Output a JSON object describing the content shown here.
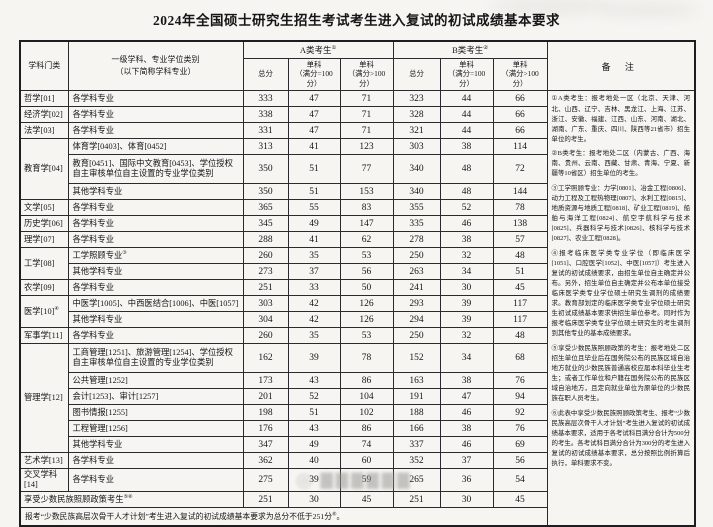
{
  "title": "2024年全国硕士研究生招生考试考生进入复试的初试成绩基本要求",
  "table": {
    "header": {
      "category": "学科门类",
      "subject": "一级学科、专业学位类别\n（以下简称学科专业）",
      "group_a": "A类考生",
      "group_a_sup": "①",
      "group_b": "B类考生",
      "group_b_sup": "②",
      "sub_total": "总分",
      "sub_single_100": "单科\n（满分=100分）",
      "sub_single_gt100": "单科\n（满分>100分）",
      "remarks": "备 注"
    },
    "rows": [
      {
        "cat": "哲学[01]",
        "sub": "各学科专业",
        "vals": [
          333,
          47,
          71,
          323,
          44,
          66
        ]
      },
      {
        "cat": "经济学[02]",
        "sub": "各学科专业",
        "vals": [
          338,
          47,
          71,
          328,
          44,
          66
        ]
      },
      {
        "cat": "法学[03]",
        "sub": "各学科专业",
        "vals": [
          331,
          47,
          71,
          321,
          44,
          66
        ]
      },
      {
        "cat": "教育学[04]",
        "rs": 3,
        "sub": "体育学[0403]、体育[0452]",
        "vals": [
          313,
          41,
          123,
          303,
          38,
          114
        ]
      },
      {
        "sub": "教育[0451]、国际中文教育[0453]、学位授权自主审核单位自主设置的专业学位类别",
        "tall": true,
        "vals": [
          350,
          51,
          77,
          340,
          48,
          72
        ]
      },
      {
        "sub": "其他学科专业",
        "vals": [
          350,
          51,
          153,
          340,
          48,
          144
        ]
      },
      {
        "cat": "文学[05]",
        "sub": "各学科专业",
        "vals": [
          365,
          55,
          83,
          355,
          52,
          78
        ]
      },
      {
        "cat": "历史学[06]",
        "sub": "各学科专业",
        "vals": [
          345,
          49,
          147,
          335,
          46,
          138
        ]
      },
      {
        "cat": "理学[07]",
        "sub": "各学科专业",
        "vals": [
          288,
          41,
          62,
          278,
          38,
          57
        ]
      },
      {
        "cat": "工学[08]",
        "rs": 2,
        "sub": "工学照顾专业",
        "subSup": "③",
        "vals": [
          260,
          35,
          53,
          250,
          32,
          48
        ]
      },
      {
        "sub": "其他学科专业",
        "vals": [
          273,
          37,
          56,
          263,
          34,
          51
        ]
      },
      {
        "cat": "农学[09]",
        "sub": "各学科专业",
        "vals": [
          251,
          33,
          50,
          241,
          30,
          45
        ]
      },
      {
        "cat": "医学[10]",
        "catSup": "④",
        "rs": 2,
        "sub": "中医学[1005]、中西医结合[1006]、中医[1057]",
        "vals": [
          303,
          42,
          126,
          293,
          39,
          117
        ]
      },
      {
        "sub": "其他学科专业",
        "vals": [
          304,
          42,
          126,
          294,
          39,
          117
        ]
      },
      {
        "cat": "军事学[11]",
        "sub": "各学科专业",
        "vals": [
          260,
          35,
          53,
          250,
          32,
          48
        ]
      },
      {
        "cat": "管理学[12]",
        "rs": 6,
        "sub": "工商管理[1251]、旅游管理[1254]、学位授权自主审核单位自主设置的专业学位类别",
        "tall": true,
        "vals": [
          162,
          39,
          78,
          152,
          34,
          68
        ]
      },
      {
        "sub": "公共管理[1252]",
        "vals": [
          173,
          43,
          86,
          163,
          38,
          76
        ]
      },
      {
        "sub": "会计[1253]、审计[1257]",
        "vals": [
          201,
          52,
          104,
          191,
          47,
          94
        ]
      },
      {
        "sub": "图书情报[1255]",
        "vals": [
          198,
          51,
          102,
          188,
          46,
          92
        ]
      },
      {
        "sub": "工程管理[1256]",
        "vals": [
          176,
          43,
          86,
          166,
          38,
          76
        ]
      },
      {
        "sub": "其他学科专业",
        "vals": [
          347,
          49,
          74,
          337,
          46,
          69
        ]
      },
      {
        "cat": "艺术学[13]",
        "sub": "各学科专业",
        "vals": [
          362,
          40,
          60,
          352,
          37,
          56
        ]
      },
      {
        "cat": "交叉学科[14]",
        "sub": "各学科专业",
        "vals": [
          275,
          39,
          59,
          265,
          36,
          54
        ]
      },
      {
        "cat": "享受少数民族照顾政策考生",
        "catSup": "⑤⑥",
        "cs": 2,
        "vals": [
          251,
          30,
          45,
          251,
          30,
          45
        ]
      },
      {
        "footer": true
      }
    ]
  },
  "remarks": {
    "notes": [
      "①A类考生：报考地处一区（北京、天津、河北、山西、辽宁、吉林、黑龙江、上海、江苏、浙江、安徽、福建、江西、山东、河南、湖北、湖南、广东、重庆、四川、陕西等21省市）招生单位的考生。",
      "②B类考生：报考地处二区（内蒙古、广西、海南、贵州、云南、西藏、甘肃、青海、宁夏、新疆等10省区）招生单位的考生。",
      "③工学照顾专业：力学[0801]、冶金工程[0806]、动力工程及工程热物理[0807]、水利工程[0815]、地质资源与地质工程[0818]、矿业工程[0819]、船舶与海洋工程[0824]、航空宇航科学与技术[0825]、兵器科学与技术[0826]、核科学与技术[0827]、农业工程[0828]。",
      "④报考临床医学类专业学位（即临床医学[1051]、口腔医学[1052]、中医[1057]）考生进入复试的初试成绩要求，由招生单位自主确定并公布。另外，招生单位自主确定并公布本单位接受临床医学类专业学位硕士研究生调剂的成绩要求。教育部划定的临床医学类专业学位硕士研究生初试成绩基本要求供招生单位参考。同时作为报考临床医学类专业学位硕士研究生的考生调剂到其他专业的基本成绩要求。",
      "⑤享受少数民族照顾政策的考生：报考地处二区招生单位且毕业后在国务院公布的民族区域自治地方就业的少数民族普通高校应届本科毕业生考生；或者工作单位和户籍在国务院公布的民族区域自治地方，且定向就业单位为原单位的少数民族在职人员考生。",
      "⑥此表中享受少数民族照顾政策考生、报考“少数民族高层次骨干人才计划”考生进入复试的初试成绩基本要求，适用于各考试科目满分合计为500分的考生。各考试科目满分合计为300分的考生进入复试的初试成绩基本要求，总分按照比例折算后执行，单科要求不变。"
    ]
  },
  "footer": {
    "text": "报考“少数民族高层次骨干人才计划”考生进入复试的初试成绩基本要求为总分不低于251分",
    "sup": "⑥",
    "end": "。"
  },
  "watermark": {
    "logo": "◎",
    "blocks": "▇▇▇▇▇▇"
  }
}
